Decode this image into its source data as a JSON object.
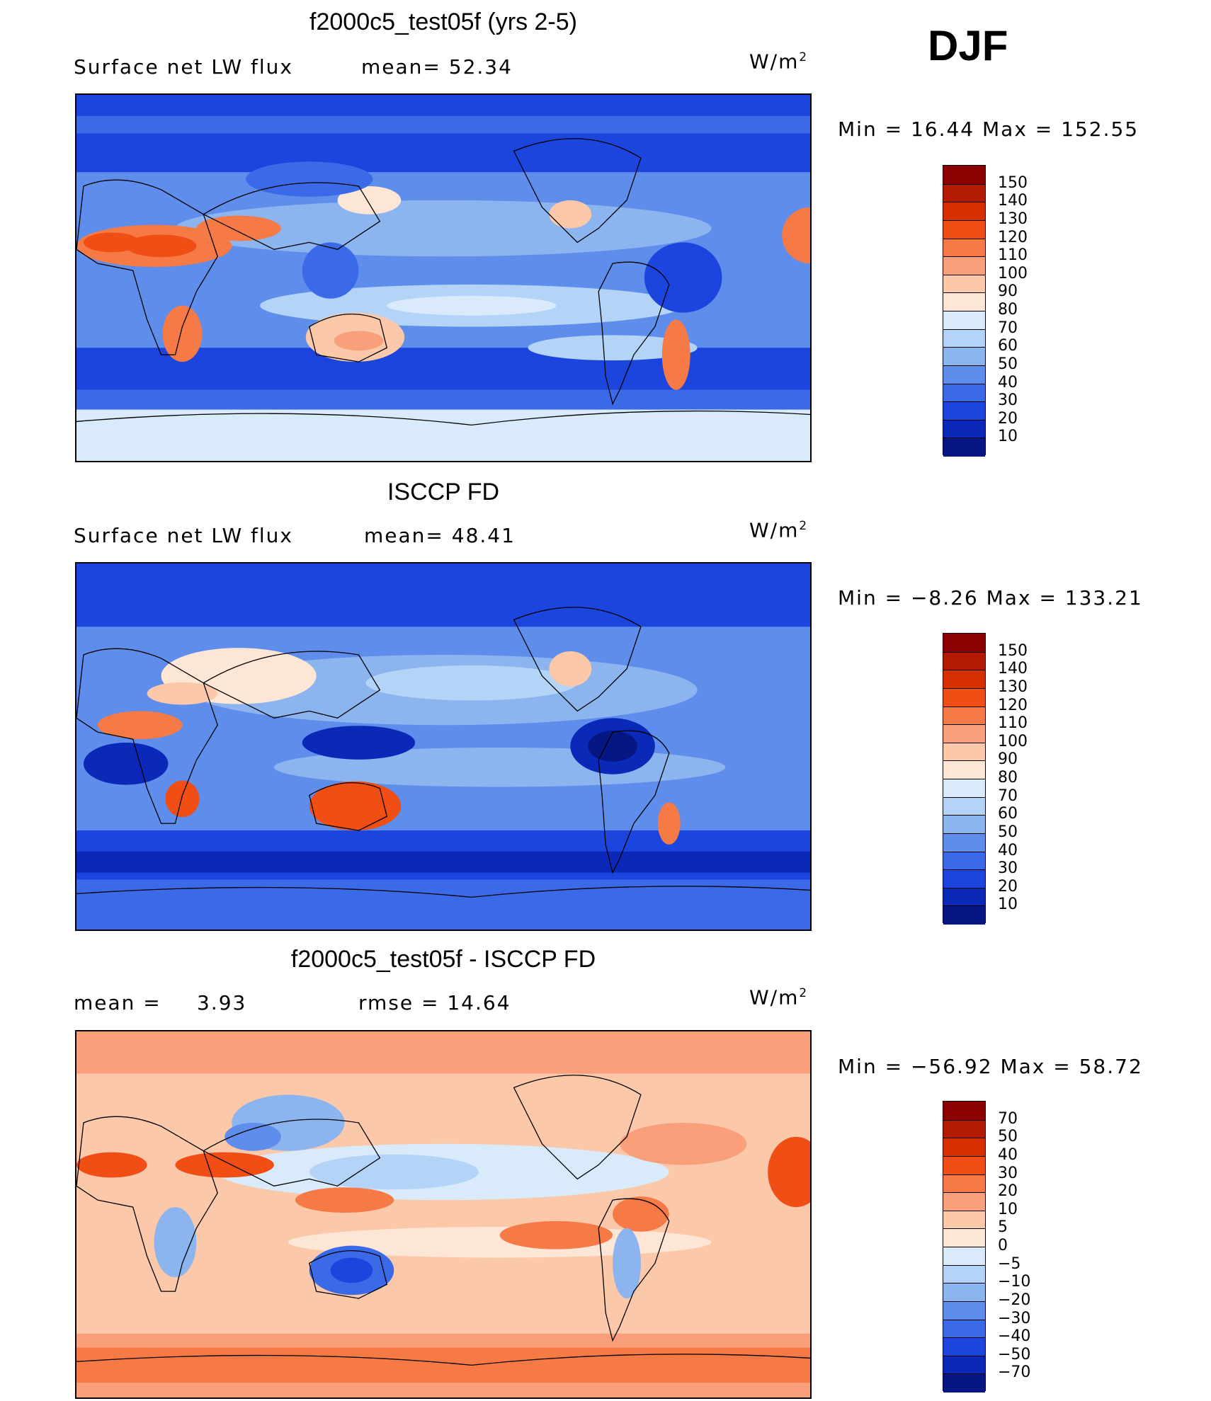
{
  "header": {
    "season": "DJF"
  },
  "panels": [
    {
      "title": "f2000c5_test05f (yrs 2-5)",
      "variable": "Surface net LW flux",
      "stat1": "mean=  52.34",
      "stat2": "",
      "units": "W/m",
      "units_sup": "2",
      "minmax": "Min =   16.44 Max =  152.55",
      "colorbar_levels": [
        "150",
        "140",
        "130",
        "120",
        "110",
        "100",
        "90",
        "80",
        "70",
        "60",
        "50",
        "40",
        "30",
        "20",
        "10"
      ],
      "colors": [
        "#8b0000",
        "#b31a00",
        "#d63000",
        "#f04e14",
        "#f57a45",
        "#f9a07a",
        "#fbc8aa",
        "#fde6d6",
        "#d9ebfb",
        "#b3d3f7",
        "#8cb5f0",
        "#5f8deb",
        "#3a6ae8",
        "#1c45de",
        "#0a29b8",
        "#061683"
      ]
    },
    {
      "title": "ISCCP FD",
      "variable": "Surface net LW flux",
      "stat1": "mean=  48.41",
      "stat2": "",
      "units": "W/m",
      "units_sup": "2",
      "minmax": "Min =  −8.26 Max =  133.21",
      "colorbar_levels": [
        "150",
        "140",
        "130",
        "120",
        "110",
        "100",
        "90",
        "80",
        "70",
        "60",
        "50",
        "40",
        "30",
        "20",
        "10"
      ],
      "colors": [
        "#8b0000",
        "#b31a00",
        "#d63000",
        "#f04e14",
        "#f57a45",
        "#f9a07a",
        "#fbc8aa",
        "#fde6d6",
        "#d9ebfb",
        "#b3d3f7",
        "#8cb5f0",
        "#5f8deb",
        "#3a6ae8",
        "#1c45de",
        "#0a29b8",
        "#061683"
      ]
    },
    {
      "title": "f2000c5_test05f - ISCCP FD",
      "variable": "mean =",
      "stat1": "3.93",
      "stat2": "rmse =   14.64",
      "units": "W/m",
      "units_sup": "2",
      "minmax": "Min = −56.92 Max =   58.72",
      "colorbar_levels": [
        "70",
        "50",
        "40",
        "30",
        "20",
        "10",
        "5",
        "0",
        "−5",
        "−10",
        "−20",
        "−30",
        "−40",
        "−50",
        "−70"
      ],
      "colors": [
        "#8b0000",
        "#b31a00",
        "#d63000",
        "#f04e14",
        "#f57a45",
        "#f9a07a",
        "#fbc8aa",
        "#fde6d6",
        "#d9ebfb",
        "#b3d3f7",
        "#8cb5f0",
        "#5f8deb",
        "#3a6ae8",
        "#1c45de",
        "#0a29b8",
        "#061683"
      ]
    }
  ]
}
